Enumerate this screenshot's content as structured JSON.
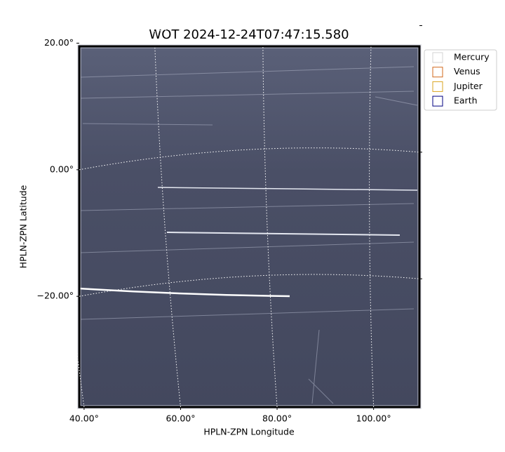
{
  "chart_data": {
    "type": "image",
    "title": "WOT 2024-12-24T07:47:15.580",
    "x_label": "HPLN-ZPN Longitude",
    "y_label": "HPLN-ZPN Latitude",
    "xlim": [
      39,
      109.5
    ],
    "ylim": [
      -37.5,
      19.5
    ],
    "xticks": [
      {
        "value": 40,
        "label": "40.00°"
      },
      {
        "value": 60,
        "label": "60.00°"
      },
      {
        "value": 80,
        "label": "80.00°"
      },
      {
        "value": 100,
        "label": "100.00°"
      }
    ],
    "yticks": [
      {
        "value": -20,
        "label": "−20.00°"
      },
      {
        "value": 0,
        "label": "0.00°"
      },
      {
        "value": 20,
        "label": "20.00°"
      }
    ],
    "grid": true,
    "legend": "upper right outside",
    "series": [
      {
        "name": "Mercury",
        "color": "#d3d3d3"
      },
      {
        "name": "Venus",
        "color": "#d2691e"
      },
      {
        "name": "Jupiter",
        "color": "#daa520"
      },
      {
        "name": "Earth",
        "color": "#000080"
      }
    ]
  }
}
